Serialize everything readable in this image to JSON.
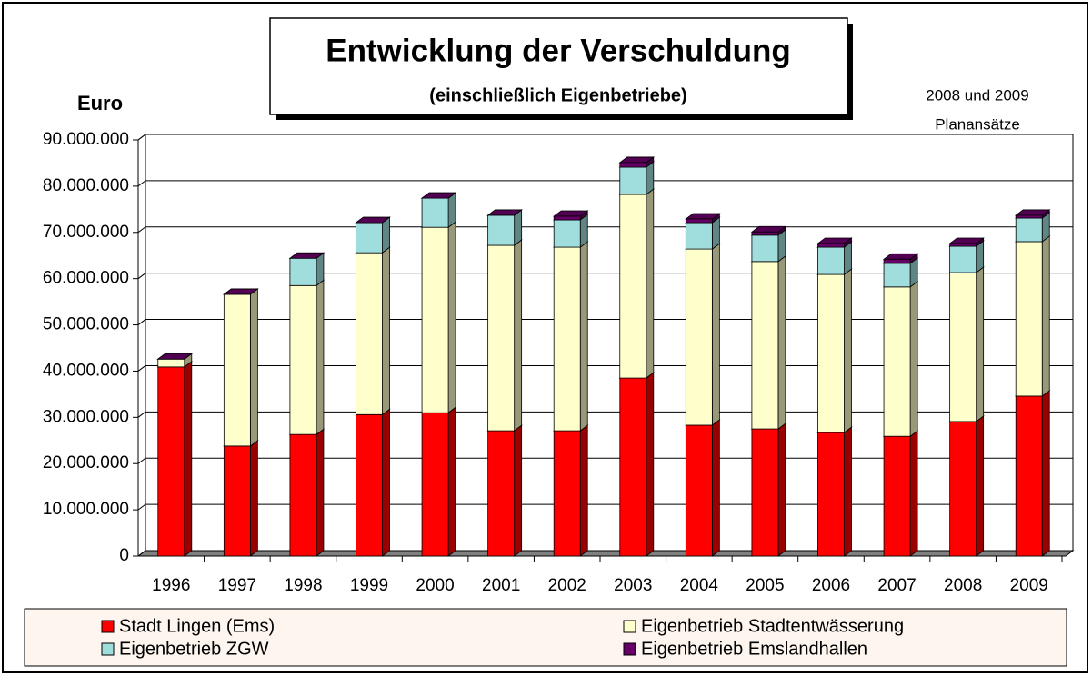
{
  "chart_data": {
    "type": "bar",
    "stacked": true,
    "title": "Entwicklung der Verschuldung",
    "subtitle": "(einschließlich Eigenbetriebe)",
    "y_axis_label": "Euro",
    "annotation": [
      "2008 und 2009",
      "Planansätze"
    ],
    "categories": [
      "1996",
      "1997",
      "1998",
      "1999",
      "2000",
      "2001",
      "2002",
      "2003",
      "2004",
      "2005",
      "2006",
      "2007",
      "2008",
      "2009"
    ],
    "series": [
      {
        "name": "Stadt Lingen (Ems)",
        "color": "#ff0000",
        "values": [
          40900000,
          23800000,
          26300000,
          30600000,
          31000000,
          27100000,
          27100000,
          38500000,
          28300000,
          27500000,
          26700000,
          25900000,
          29100000,
          34600000
        ]
      },
      {
        "name": "Eigenbetrieb Stadtentwässerung",
        "color": "#ffffcc",
        "values": [
          1700000,
          32800000,
          32200000,
          35000000,
          40100000,
          40100000,
          39700000,
          39700000,
          38100000,
          36200000,
          34200000,
          32300000,
          32200000,
          33400000
        ]
      },
      {
        "name": "Eigenbetrieb ZGW",
        "color": "#a0dede",
        "values": [
          0,
          0,
          5900000,
          6500000,
          6300000,
          6500000,
          5900000,
          5900000,
          5700000,
          5700000,
          5900000,
          5100000,
          5700000,
          5100000
        ]
      },
      {
        "name": "Eigenbetrieb Emslandhallen",
        "color": "#660066",
        "values": [
          0,
          0,
          0,
          0,
          0,
          0,
          800000,
          1000000,
          800000,
          700000,
          800000,
          900000,
          600000,
          600000
        ]
      }
    ],
    "ylim": [
      0,
      90000000
    ],
    "yticks": [
      0,
      {
        "value": 10000000,
        "label": "10.000.000"
      },
      {
        "value": 20000000,
        "label": "20.000.000"
      },
      {
        "value": 30000000,
        "label": "30.000.000"
      },
      {
        "value": 40000000,
        "label": "40.000.000"
      },
      {
        "value": 50000000,
        "label": "50.000.000"
      },
      {
        "value": 60000000,
        "label": "60.000.000"
      },
      {
        "value": 70000000,
        "label": "70.000.000"
      },
      {
        "value": 80000000,
        "label": "80.000.000"
      },
      {
        "value": 90000000,
        "label": "90.000.000"
      }
    ],
    "grid": true
  }
}
